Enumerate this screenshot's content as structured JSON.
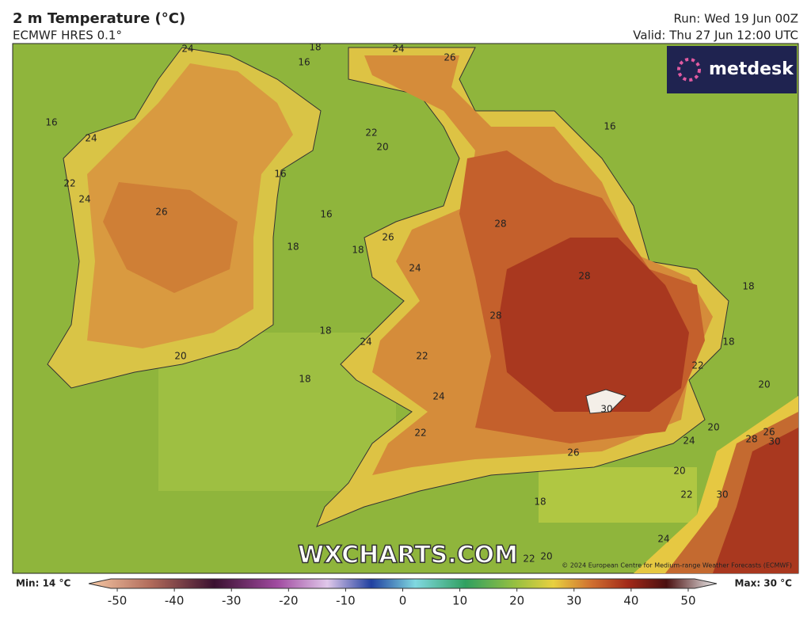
{
  "header": {
    "title": "2 m Temperature (°C)",
    "subtitle": "ECMWF HRES 0.1°",
    "run": "Run: Wed 19 Jun 00Z",
    "valid": "Valid: Thu 27 Jun 12:00 UTC"
  },
  "logo": "metdesk",
  "watermark": "WXCHARTS.COM",
  "copyright": "© 2024 European Centre for Medium-range Weather Forecasts (ECMWF)",
  "contour_labels": [
    24,
    18,
    16,
    24,
    26,
    16,
    24,
    22,
    20,
    16,
    16,
    22,
    24,
    26,
    16,
    28,
    26,
    18,
    18,
    24,
    28,
    18,
    28,
    18,
    18,
    24,
    22,
    20,
    22,
    18,
    20,
    24,
    30,
    20,
    22,
    24,
    28,
    26,
    30,
    26,
    20,
    22,
    30,
    18,
    24,
    20,
    22
  ],
  "colorbar": {
    "min_label": "Min: 14 °C",
    "max_label": "Max: 30 °C",
    "lim": [
      -55,
      55
    ],
    "ticks": [
      -50,
      -40,
      -30,
      -20,
      -10,
      0,
      10,
      20,
      30,
      40,
      50
    ]
  }
}
